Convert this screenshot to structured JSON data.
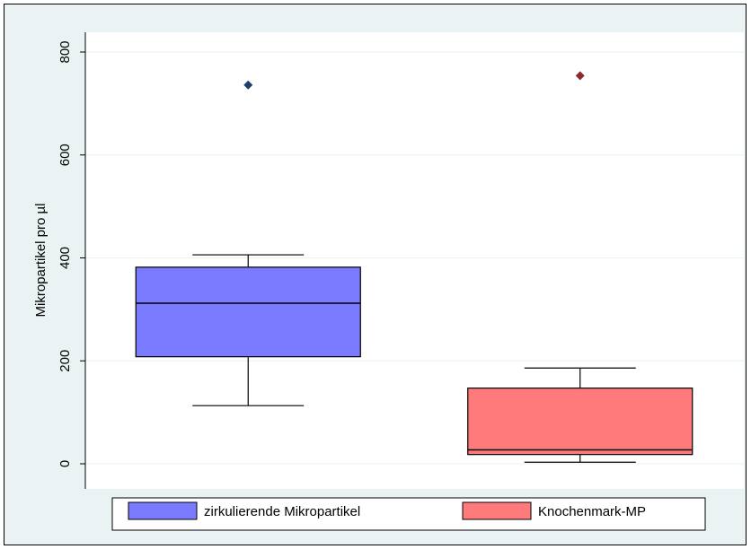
{
  "chart_data": {
    "type": "boxplot",
    "title": "",
    "xlabel": "",
    "ylabel": "Mikropartikel pro µl",
    "ylim": [
      -40,
      840
    ],
    "yticks": [
      0,
      200,
      400,
      600,
      800
    ],
    "grid": true,
    "legend_position": "bottom",
    "series": [
      {
        "name": "zirkulierende Mikropartikel",
        "color": "#7b7bff",
        "outlier_color": "#1a3f6e",
        "whisker_low": 113,
        "q1": 208,
        "median": 312,
        "q3": 382,
        "whisker_high": 406,
        "outliers": [
          736
        ]
      },
      {
        "name": "Knochenmark-MP",
        "color": "#ff7a7a",
        "outlier_color": "#8b2b2b",
        "whisker_low": 3,
        "q1": 18,
        "median": 27,
        "q3": 147,
        "whisker_high": 186,
        "outliers": [
          754
        ]
      }
    ]
  }
}
